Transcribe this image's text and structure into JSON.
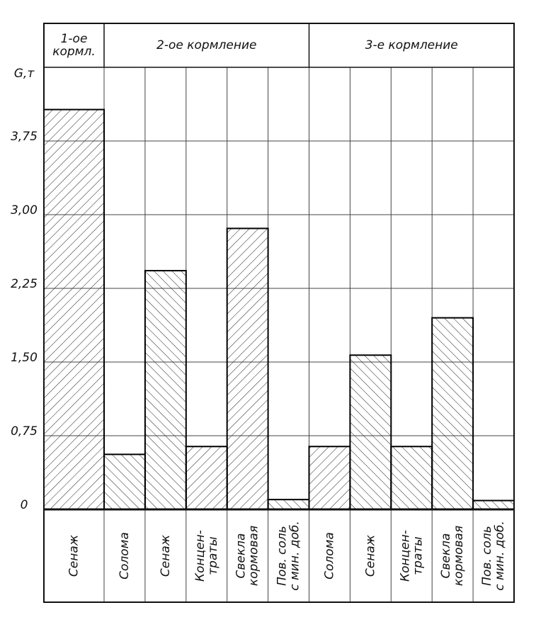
{
  "chart_data": {
    "type": "bar",
    "ylabel": "G,т",
    "groups": [
      {
        "label": "1-ое\nкормл.",
        "span": 1
      },
      {
        "label": "2-ое кормление",
        "span": 5
      },
      {
        "label": "3-е кормление",
        "span": 5
      }
    ],
    "categories": [
      "Сенаж",
      "Солома",
      "Сенаж",
      "Концен-\nтраты",
      "Свекла\nкормовая",
      "Пов. соль\nс мин. доб.",
      "Солома",
      "Сенаж",
      "Концен-\nтраты",
      "Свекла\nкормовая",
      "Пов. соль\nс мин. доб."
    ],
    "values": [
      4.07,
      0.56,
      2.43,
      0.64,
      2.86,
      0.1,
      0.64,
      1.57,
      0.64,
      1.95,
      0.09
    ],
    "hatch": [
      "/",
      "\\",
      "\\",
      "/",
      "/",
      "\\",
      "/",
      "\\",
      "\\",
      "\\",
      "\\"
    ],
    "color": "#000000",
    "ylim": [
      0,
      4.5
    ],
    "yticks": [
      {
        "value": 0,
        "label": "0"
      },
      {
        "value": 0.75,
        "label": "0,75"
      },
      {
        "value": 1.5,
        "label": "1,50"
      },
      {
        "value": 2.25,
        "label": "2,25"
      },
      {
        "value": 3,
        "label": "3,00"
      },
      {
        "value": 3.75,
        "label": "3,75"
      }
    ],
    "grid": true
  }
}
